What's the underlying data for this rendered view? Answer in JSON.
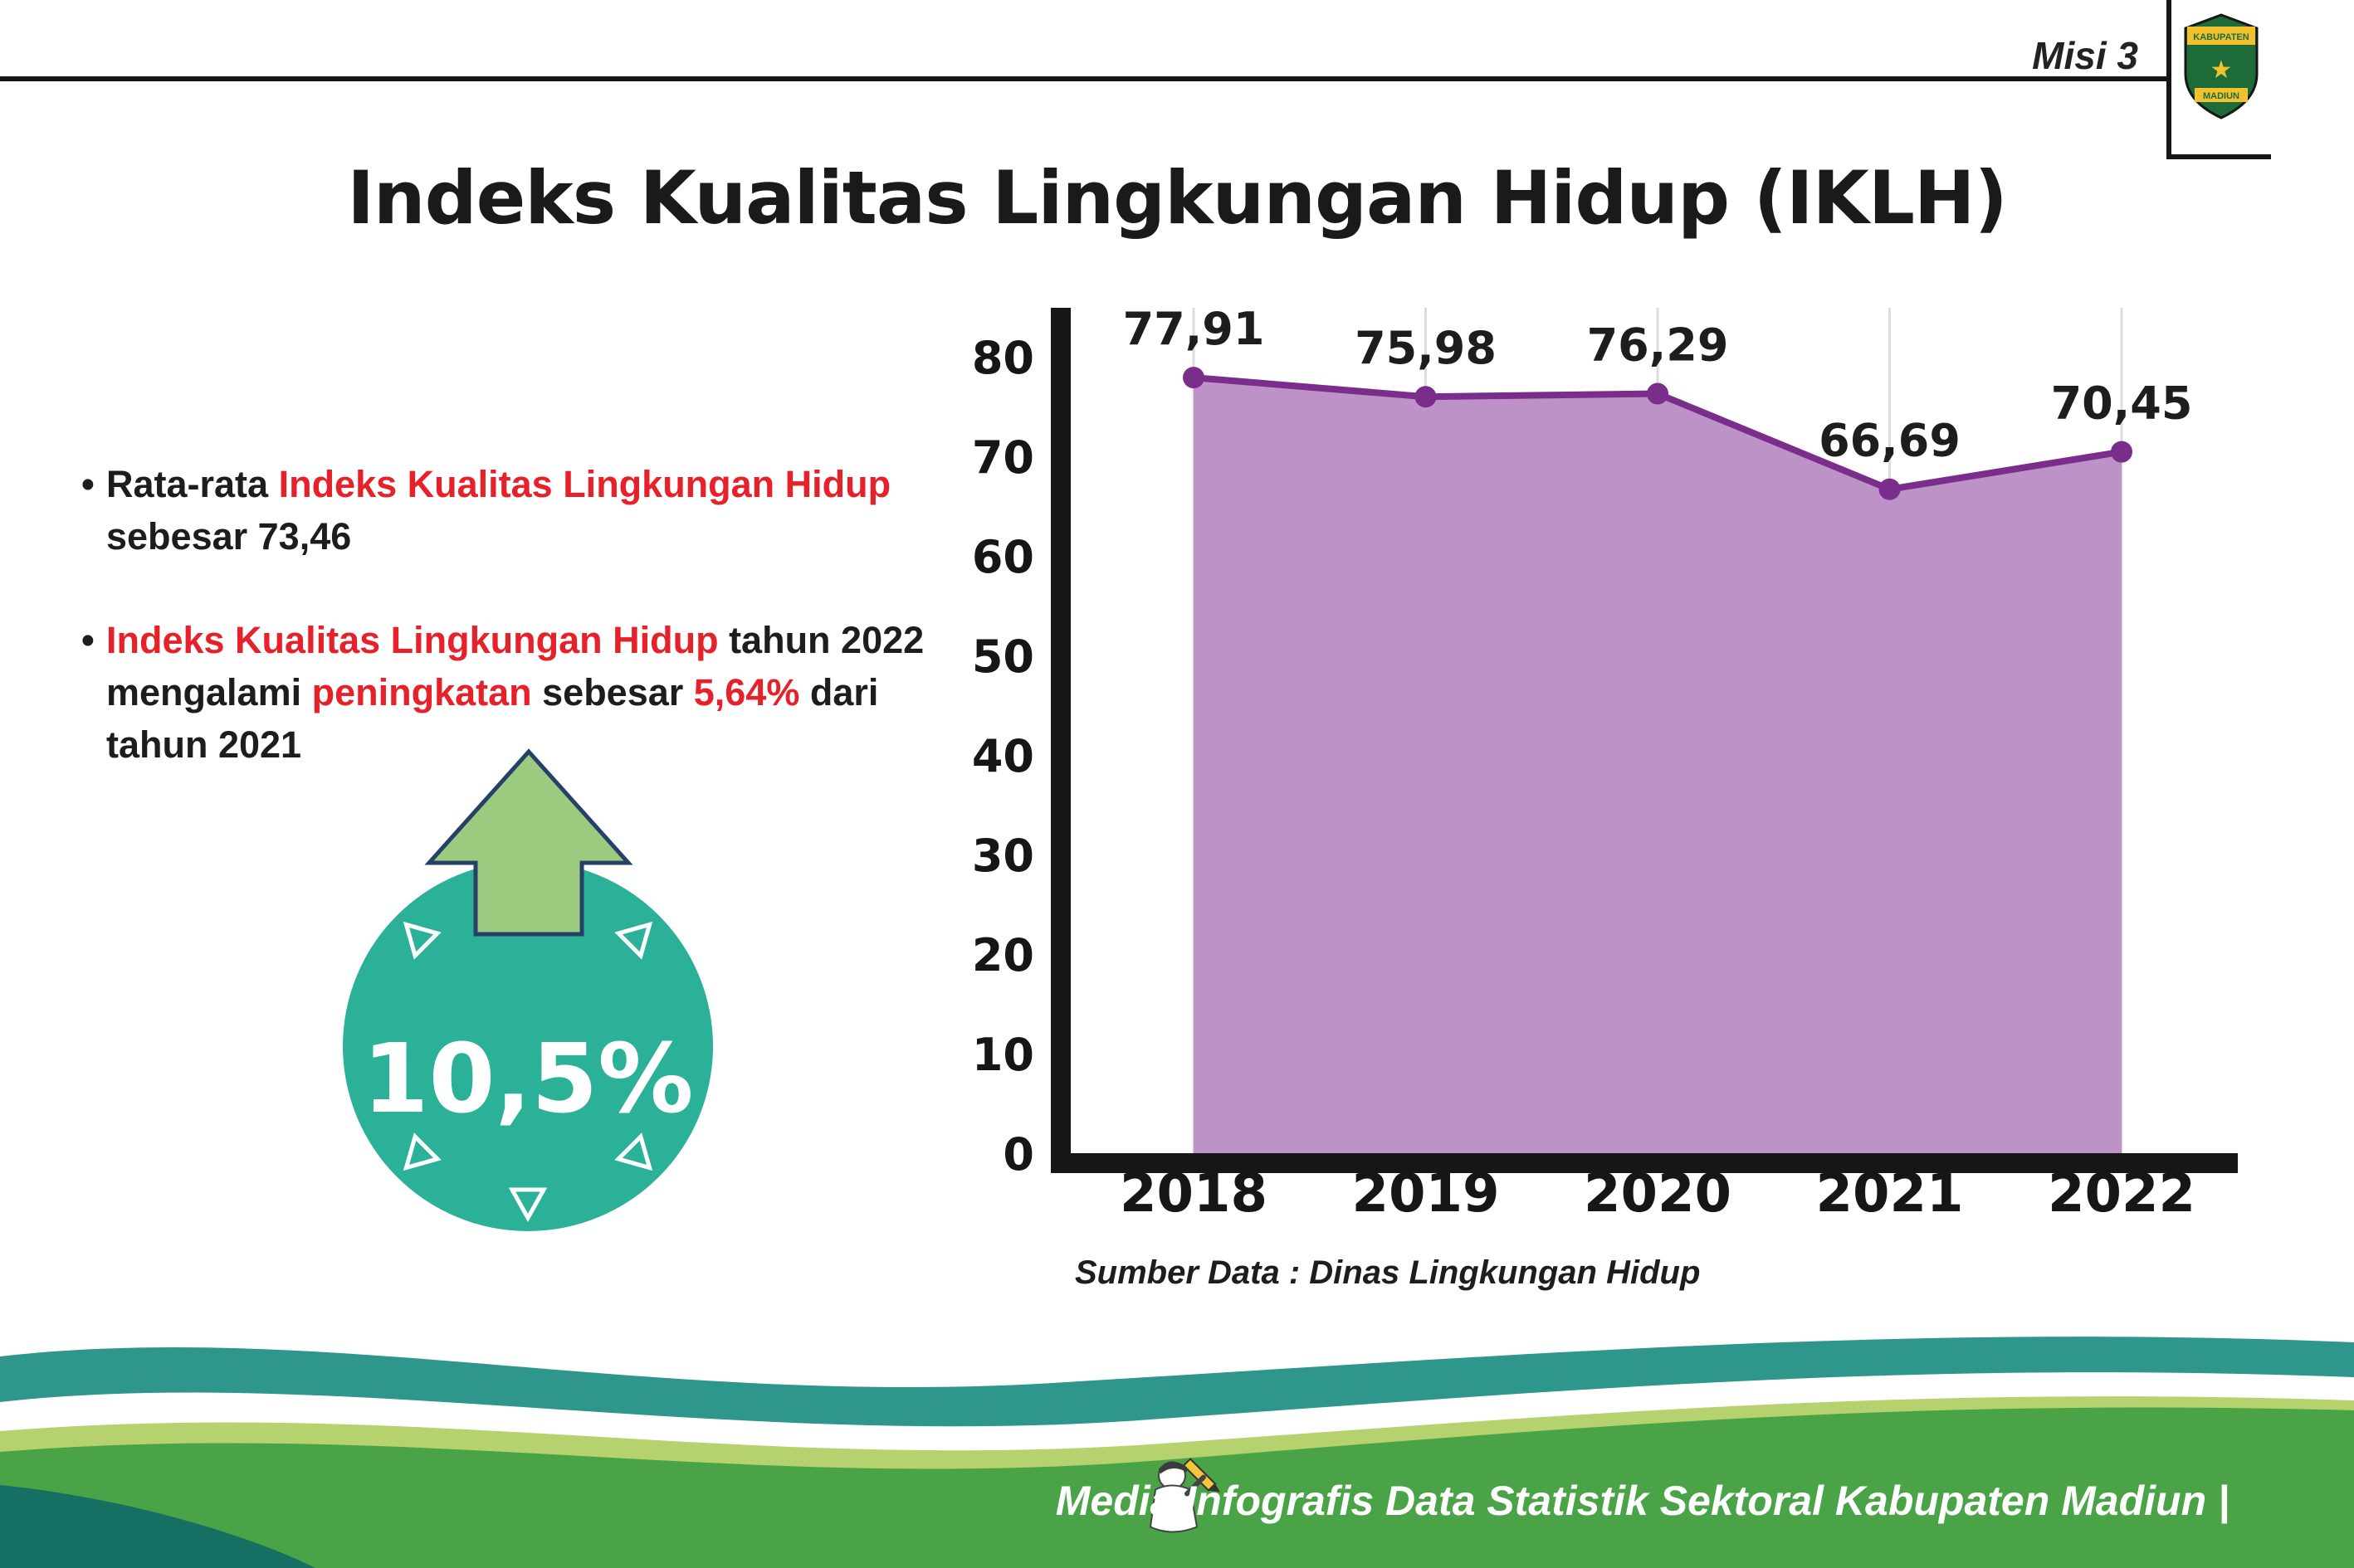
{
  "header": {
    "misi": "Misi 3",
    "title": "Indeks Kualitas Lingkungan Hidup (IKLH)",
    "logo": {
      "top": "KABUPATEN",
      "bottom": "MADIUN"
    }
  },
  "bullets": {
    "marker": "•",
    "b1": {
      "t1": "Rata-rata ",
      "t2": "Indeks Kualitas Lingkungan Hidup",
      "t3": "sebesar 73,46"
    },
    "b2": {
      "t1": "Indeks Kualitas Lingkungan Hidup",
      "t2": " tahun 2022",
      "t3": "mengalami ",
      "t4": "peningkatan",
      "t5": " sebesar ",
      "t6": "5,64%",
      "t7": " dari",
      "t8": "tahun 2021"
    }
  },
  "badge": {
    "value": "10,5%"
  },
  "chart_data": {
    "type": "area",
    "categories": [
      "2018",
      "2019",
      "2020",
      "2021",
      "2022"
    ],
    "values": [
      77.91,
      75.98,
      76.29,
      66.69,
      70.45
    ],
    "point_labels": [
      "77,91",
      "75,98",
      "76,29",
      "66,69",
      "70,45"
    ],
    "ylim": [
      0,
      80
    ],
    "yticks": [
      0,
      10,
      20,
      30,
      40,
      50,
      60,
      70,
      80
    ],
    "grid": "vertical",
    "legend": "none",
    "source": "Sumber Data : Dinas Lingkungan Hidup",
    "colors": {
      "fill": "#bd92c6",
      "line": "#7b2d8c",
      "axis": "#161616",
      "grid": "#dcdcdc",
      "label": "#1d1d1b"
    }
  },
  "footer": {
    "text": "Media Infografis Data Statistik Sektoral Kabupaten Madiun |",
    "colors": {
      "teal": "#2f968c",
      "light_green": "#b5d26e",
      "green": "#4aa347",
      "dark_teal": "#156f62"
    }
  }
}
